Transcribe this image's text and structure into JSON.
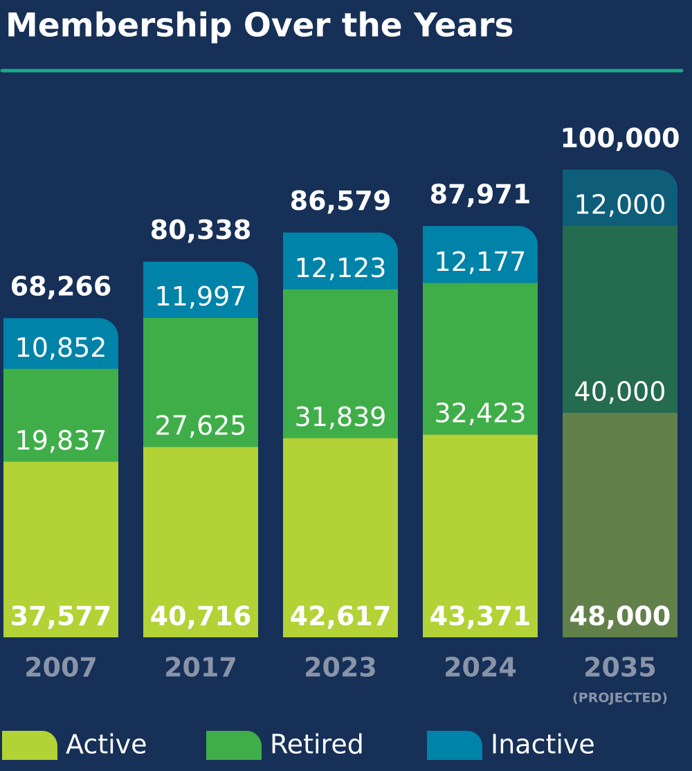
{
  "chart_data": {
    "type": "bar",
    "stacked": true,
    "title": "Membership Over the Years",
    "categories": [
      "2007",
      "2017",
      "2023",
      "2024",
      "2035"
    ],
    "annotation": "(PROJECTED)",
    "series": [
      {
        "name": "Active",
        "color": "#b2d235",
        "colors": [
          "#b2d235",
          "#b2d235",
          "#b2d235",
          "#b2d235",
          "#62804a"
        ],
        "values": [
          37577,
          40716,
          42617,
          43371,
          48000
        ],
        "value_labels": [
          "37,577",
          "40,716",
          "42,617",
          "43,371",
          "48,000"
        ]
      },
      {
        "name": "Retired",
        "color": "#3fae49",
        "colors": [
          "#3fae49",
          "#3fae49",
          "#3fae49",
          "#3fae49",
          "#256b4f"
        ],
        "values": [
          19837,
          27625,
          31839,
          32423,
          40000
        ],
        "value_labels": [
          "19,837",
          "27,625",
          "31,839",
          "32,423",
          "40,000"
        ]
      },
      {
        "name": "Inactive",
        "color": "#0083a9",
        "colors": [
          "#0083a9",
          "#0083a9",
          "#0083a9",
          "#0083a9",
          "#0e5e7a"
        ],
        "values": [
          10852,
          11997,
          12123,
          12177,
          12000
        ],
        "value_labels": [
          "10,852",
          "11,997",
          "12,123",
          "12,177",
          "12,000"
        ]
      }
    ],
    "totals": {
      "values": [
        68266,
        80338,
        86579,
        87971,
        100000
      ],
      "value_labels": [
        "68,266",
        "80,338",
        "86,579",
        "87,971",
        "100,000"
      ]
    }
  }
}
